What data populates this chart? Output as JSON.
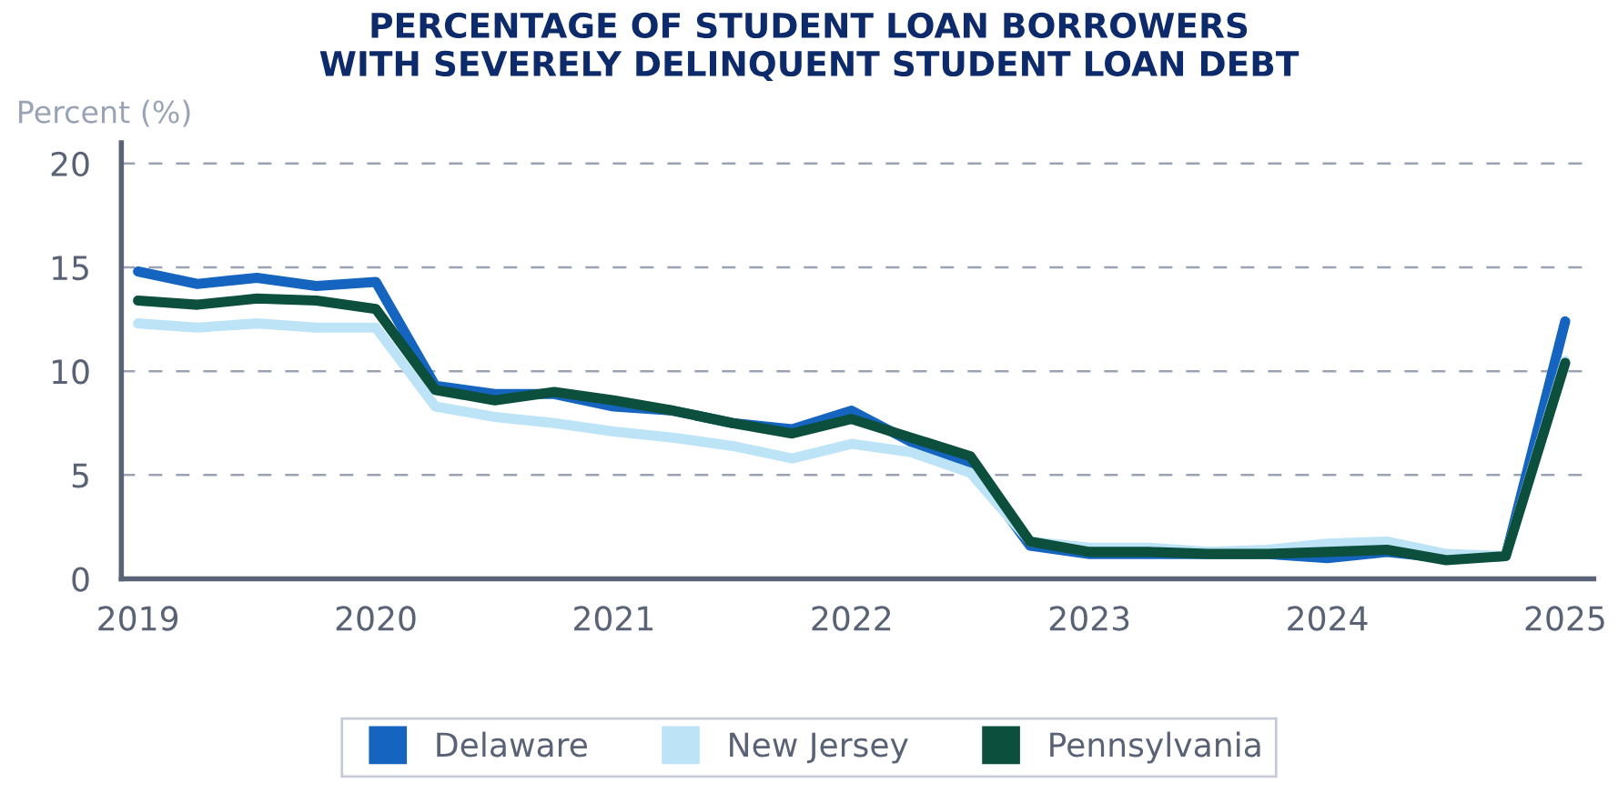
{
  "chart_data": {
    "type": "line",
    "title": "PERCENTAGE OF STUDENT LOAN BORROWERS\nWITH SEVERELY DELINQUENT STUDENT LOAN DEBT",
    "ylabel": "Percent (%)",
    "x": [
      2019,
      2019.25,
      2019.5,
      2019.75,
      2020,
      2020.25,
      2020.5,
      2020.75,
      2021,
      2021.25,
      2021.5,
      2021.75,
      2022,
      2022.25,
      2022.5,
      2022.75,
      2023,
      2023.25,
      2023.5,
      2023.75,
      2024,
      2024.25,
      2024.5,
      2024.75,
      2025
    ],
    "series": [
      {
        "name": "Delaware",
        "color": "#1565c0",
        "values": [
          14.8,
          14.2,
          14.5,
          14.1,
          14.3,
          9.3,
          8.9,
          8.9,
          8.3,
          8.1,
          7.5,
          7.2,
          8.1,
          6.6,
          5.5,
          1.6,
          1.2,
          1.2,
          1.2,
          1.2,
          1.0,
          1.3,
          1.0,
          1.1,
          12.4
        ]
      },
      {
        "name": "New Jersey",
        "color": "#bde3f7",
        "values": [
          12.3,
          12.1,
          12.3,
          12.1,
          12.1,
          8.3,
          7.8,
          7.5,
          7.1,
          6.8,
          6.4,
          5.8,
          6.5,
          6.1,
          5.1,
          1.8,
          1.5,
          1.5,
          1.3,
          1.4,
          1.7,
          1.8,
          1.2,
          1.1,
          10.5
        ]
      },
      {
        "name": "Pennsylvania",
        "color": "#0b4f3c",
        "values": [
          13.4,
          13.2,
          13.5,
          13.4,
          13.0,
          9.1,
          8.6,
          9.0,
          8.6,
          8.1,
          7.5,
          7.0,
          7.7,
          6.8,
          5.9,
          1.8,
          1.3,
          1.3,
          1.2,
          1.2,
          1.3,
          1.4,
          0.9,
          1.1,
          10.4
        ]
      }
    ],
    "xlim": [
      2018.93,
      2025.12
    ],
    "xticks": [
      2019,
      2020,
      2021,
      2022,
      2023,
      2024,
      2025
    ],
    "ylim": [
      0,
      21
    ],
    "yticks": [
      0,
      5,
      10,
      15,
      20
    ],
    "grid": "y",
    "legend": "bottom",
    "line_style": "solid"
  }
}
